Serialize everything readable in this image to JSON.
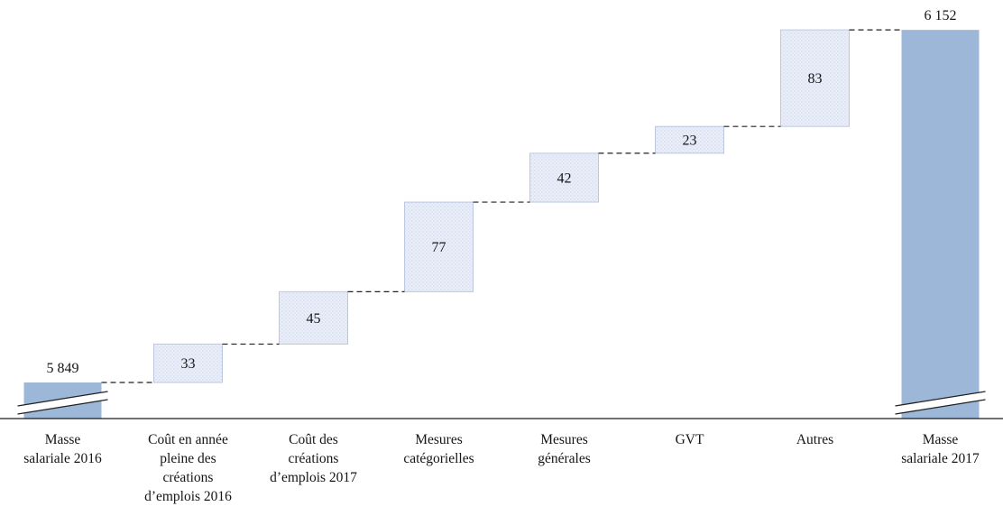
{
  "chart_data": {
    "type": "bar",
    "subtype": "waterfall",
    "title": "",
    "xlabel": "",
    "ylabel": "",
    "gridlines": false,
    "legend": "none",
    "axis_break": true,
    "start": {
      "category": [
        "Masse",
        "salariale 2016"
      ],
      "value": 5849,
      "label": "5 849"
    },
    "steps": [
      {
        "category": [
          "Coût en année",
          "pleine des",
          "créations",
          "d’emplois 2016"
        ],
        "value": 33,
        "label": "33"
      },
      {
        "category": [
          "Coût des",
          "créations",
          "d’emplois 2017"
        ],
        "value": 45,
        "label": "45"
      },
      {
        "category": [
          "Mesures",
          "catégorielles"
        ],
        "value": 77,
        "label": "77"
      },
      {
        "category": [
          "Mesures",
          "générales"
        ],
        "value": 42,
        "label": "42"
      },
      {
        "category": [
          "GVT"
        ],
        "value": 23,
        "label": "23"
      },
      {
        "category": [
          "Autres"
        ],
        "value": 83,
        "label": "83"
      }
    ],
    "end": {
      "category": [
        "Masse",
        "salariale 2017"
      ],
      "value": 6152,
      "label": "6 152"
    },
    "colors": {
      "anchor_fill": "#9db7d9",
      "float_fill": "#e9eef8",
      "float_dot": "#c9d3ea",
      "float_border": "#bcc8e2",
      "connector": "#222222",
      "axis": "#1a1a1a",
      "text": "#151515"
    }
  }
}
